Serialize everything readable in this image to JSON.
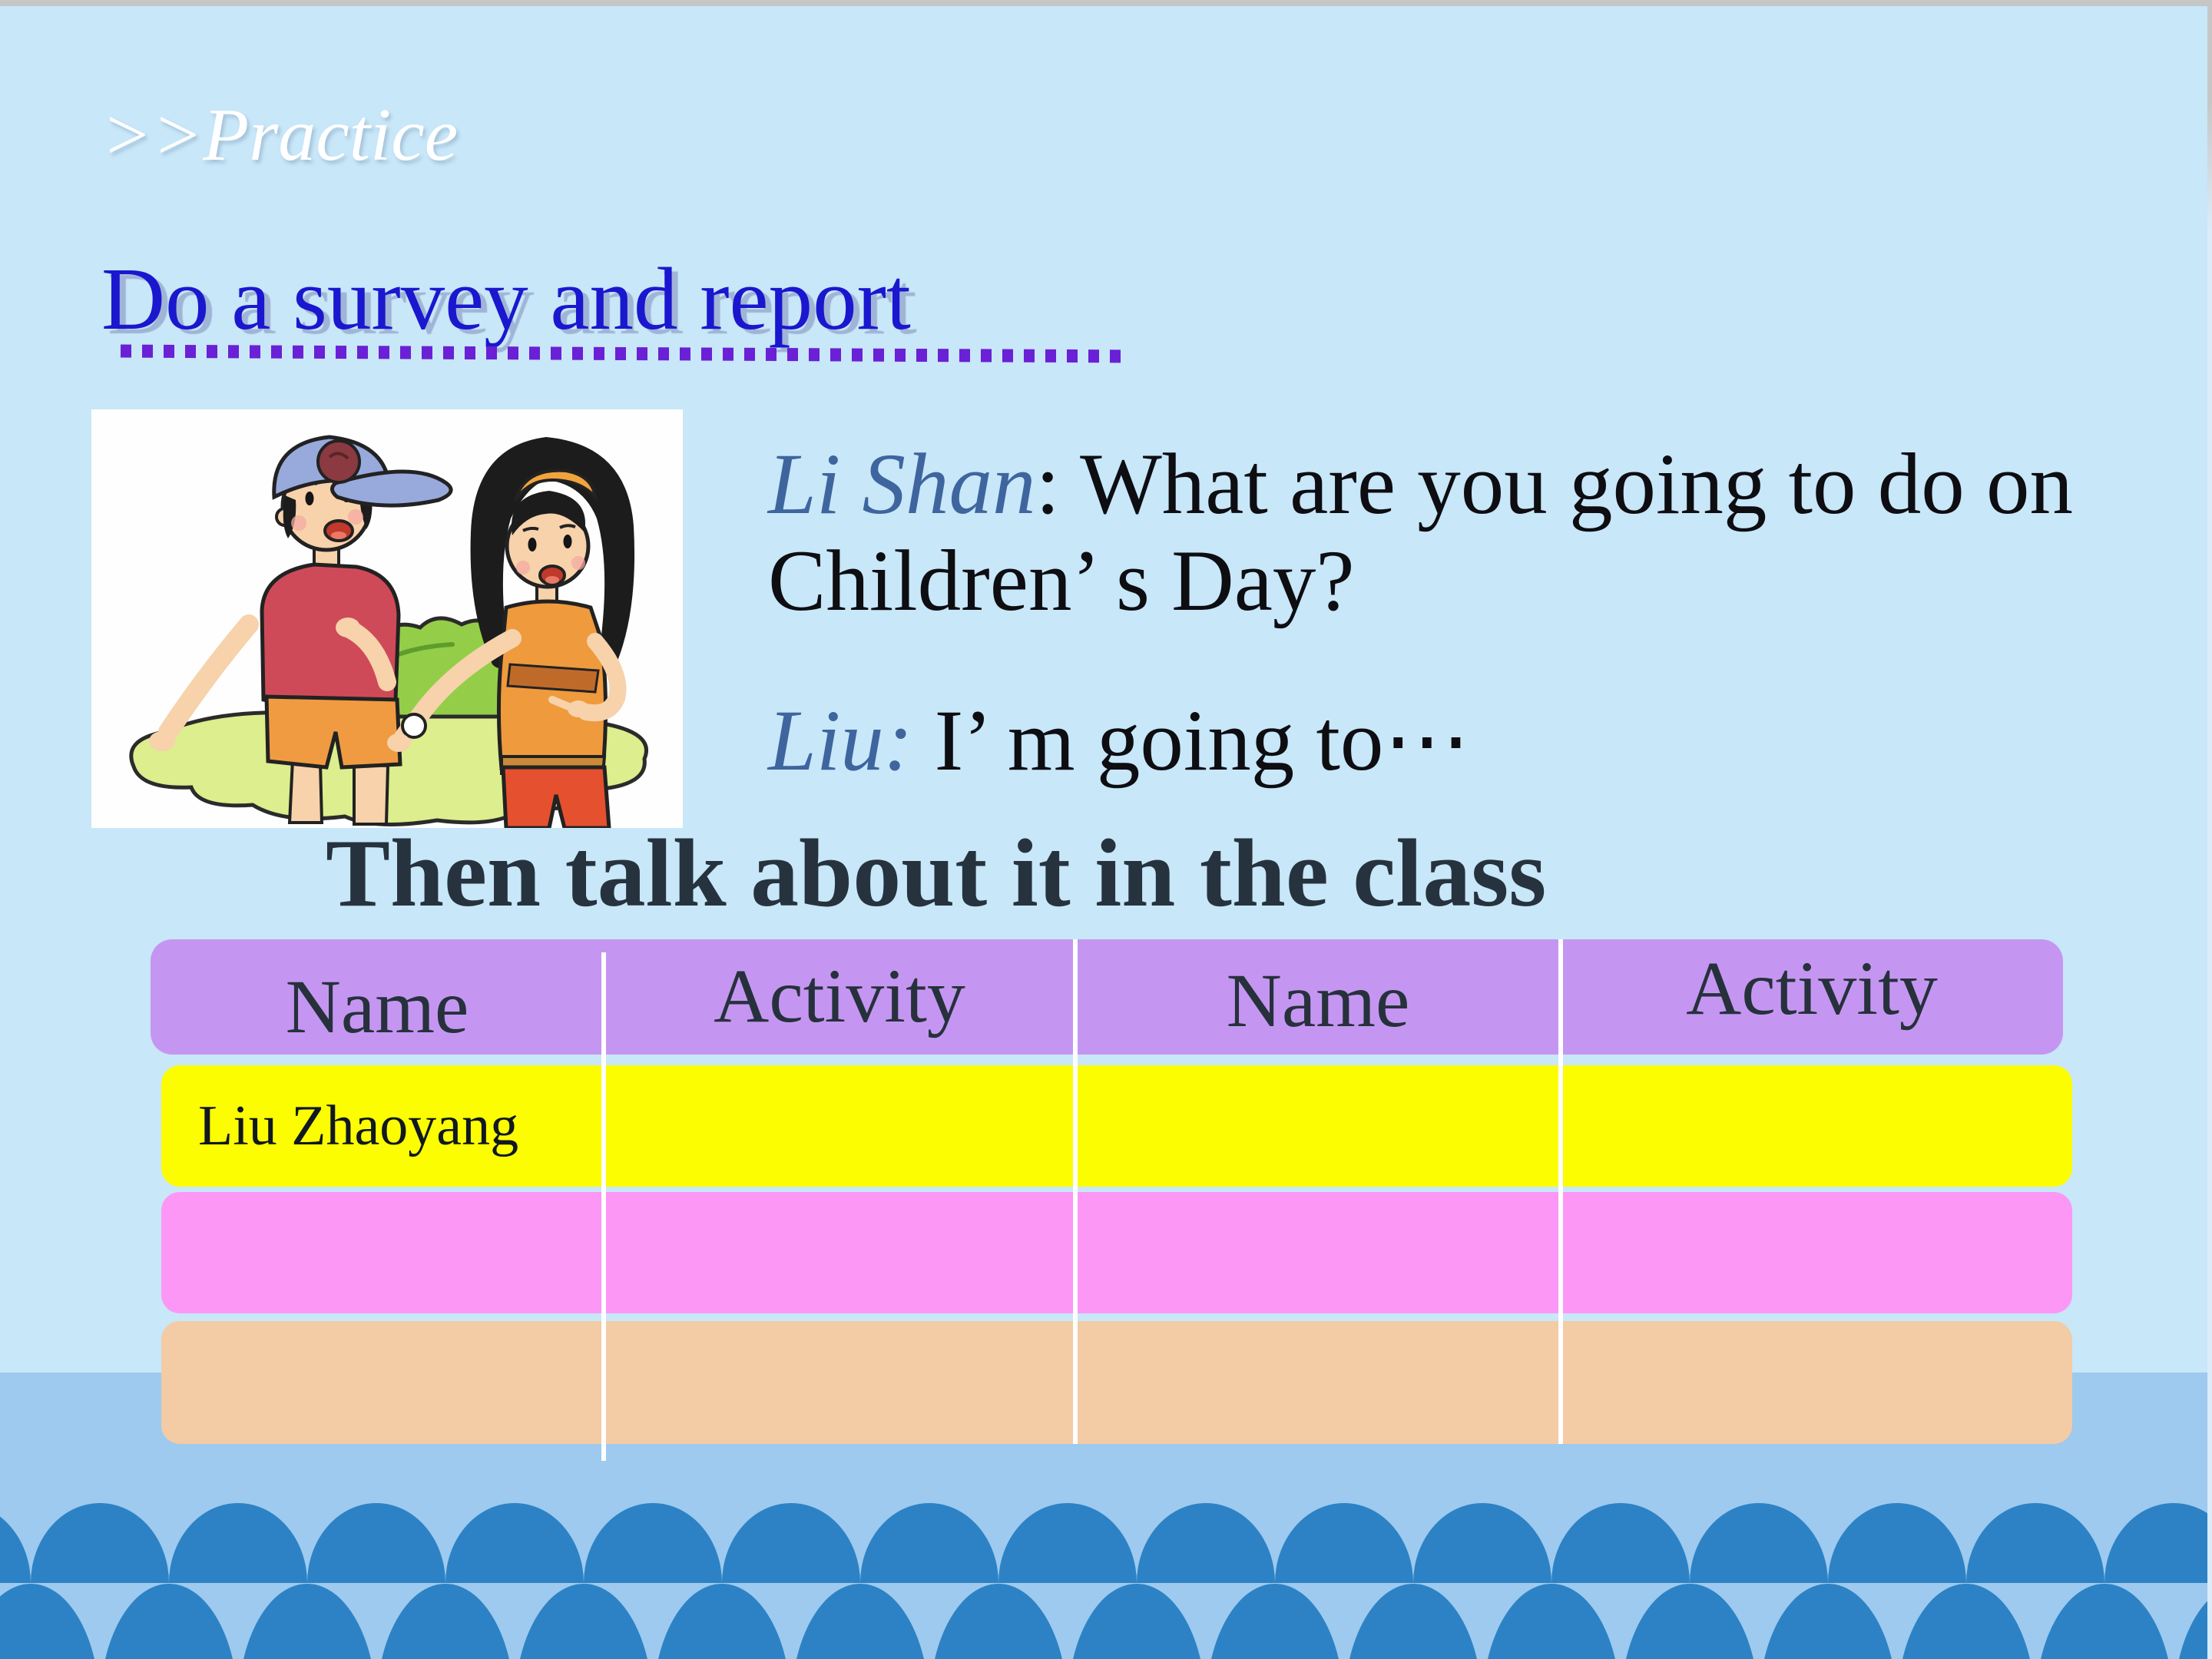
{
  "kicker": ">>Practice",
  "title": "Do a survey and report",
  "dialog": {
    "speaker1": "Li Shan",
    "speaker1_colon": ": ",
    "question_line1": "What are you going to do on",
    "question_line2": "Children’ s Day?",
    "speaker2": "Liu: ",
    "answer": "I’ m going to⋯"
  },
  "instruction": "Then talk about it in the class",
  "survey_table": {
    "headers": [
      "Name",
      "Activity",
      "Name",
      "Activity"
    ],
    "rows": [
      {
        "cells": [
          "Liu Zhaoyang",
          "",
          "",
          ""
        ]
      },
      {
        "cells": [
          "",
          "",
          "",
          ""
        ]
      },
      {
        "cells": [
          "",
          "",
          "",
          ""
        ]
      }
    ]
  },
  "illustration": "two-children-talking",
  "colors": {
    "slide_background": "#c8e7f8",
    "lower_band": "#9dcaee",
    "wave": "#2d82c5",
    "top_bar": "#c6c6c6",
    "kicker_text": "#ffffff",
    "title_text": "#1a17cf",
    "underline_dots": "#6a20d5",
    "speaker_text": "#3e659e",
    "dialog_text": "#0d0d12",
    "instruction_text": "#26333f",
    "header_row": "#c596f1",
    "row_1": "#fdfd02",
    "row_2": "#fc97f6",
    "row_3": "#f3cba5",
    "divider": "#ffffff"
  }
}
